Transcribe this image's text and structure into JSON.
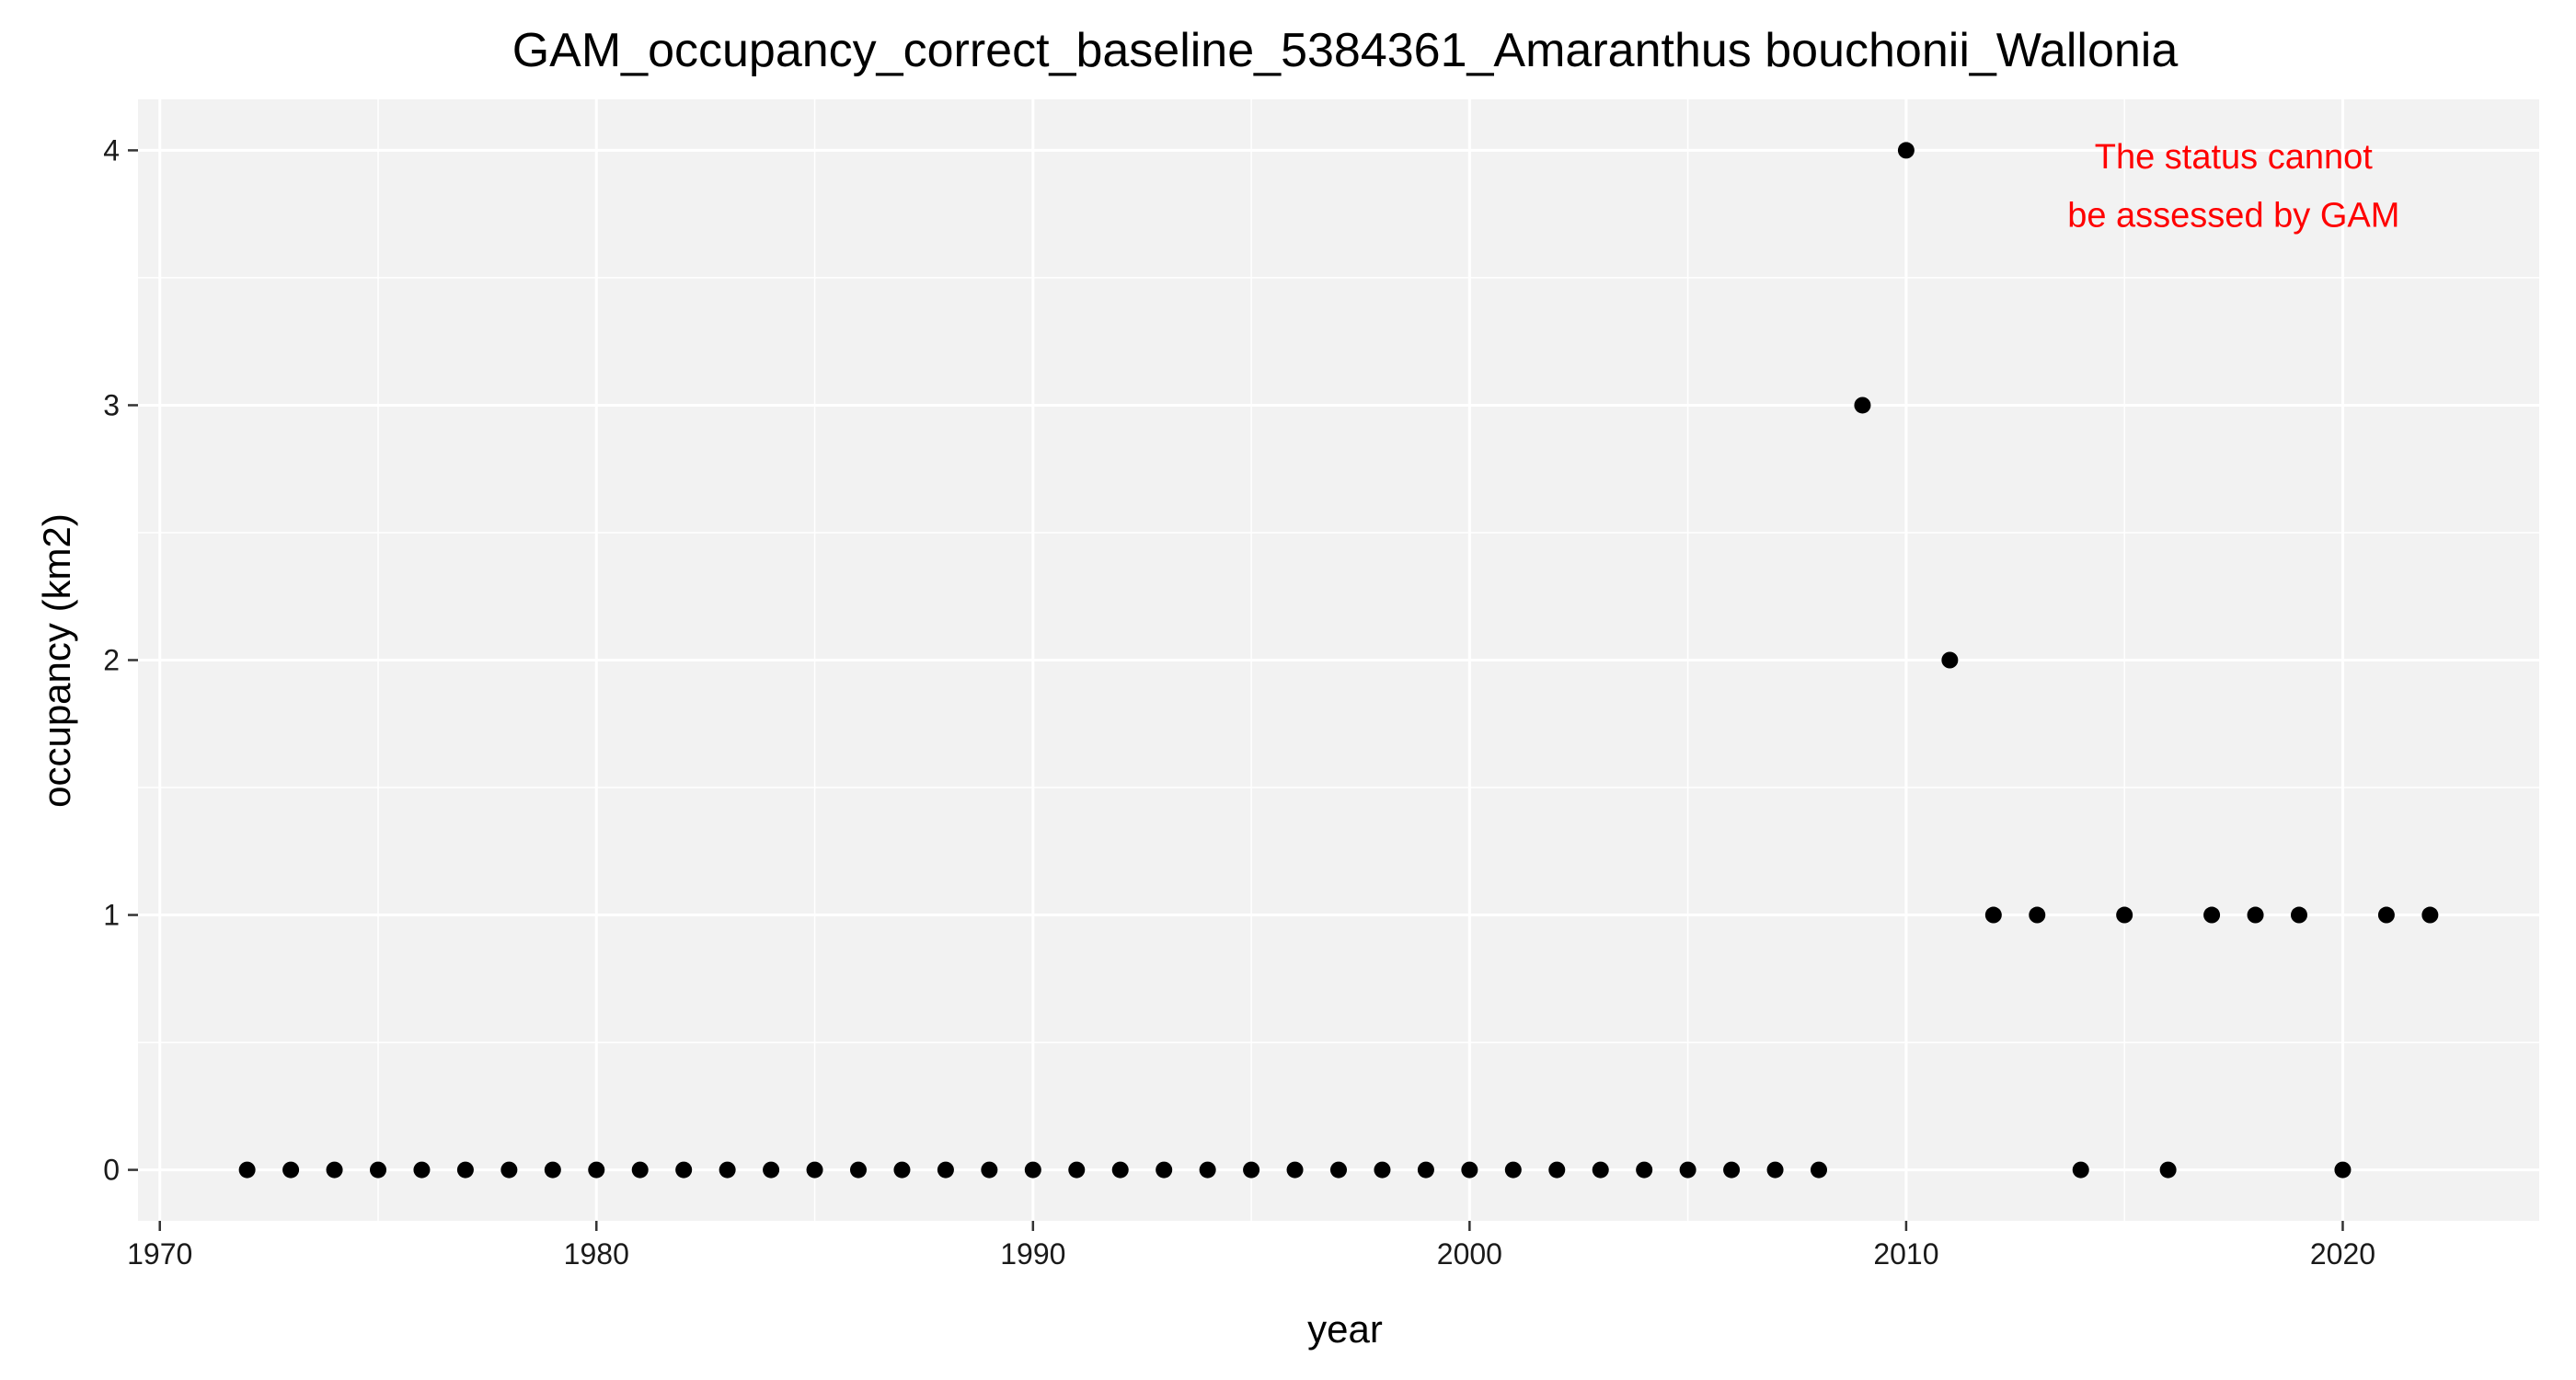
{
  "chart_data": {
    "type": "scatter",
    "title": "GAM_occupancy_correct_baseline_5384361_Amaranthus bouchonii_Wallonia",
    "xlabel": "year",
    "ylabel": "occupancy (km2)",
    "xlim": [
      1969.5,
      2024.5
    ],
    "ylim": [
      -0.2,
      4.2
    ],
    "x_ticks": [
      1970,
      1980,
      1990,
      2000,
      2010,
      2020
    ],
    "x_minor_ticks": [
      1975,
      1985,
      1995,
      2005,
      2015
    ],
    "y_ticks": [
      0,
      1,
      2,
      3,
      4
    ],
    "y_minor_ticks": [
      0.5,
      1.5,
      2.5,
      3.5
    ],
    "grid": true,
    "colors": {
      "panel": "#f2f2f2",
      "grid": "#ffffff",
      "points": "#000000",
      "annotation": "#ff0000"
    },
    "annotation": {
      "lines": [
        "The status cannot",
        "be assessed by GAM"
      ],
      "x": 2017.5,
      "y": [
        3.93,
        3.7
      ],
      "color": "#ff0000"
    },
    "series": [
      {
        "x": [
          1972,
          1973,
          1974,
          1975,
          1976,
          1977,
          1978,
          1979,
          1980,
          1981,
          1982,
          1983,
          1984,
          1985,
          1986,
          1987,
          1988,
          1989,
          1990,
          1991,
          1992,
          1993,
          1994,
          1995,
          1996,
          1997,
          1998,
          1999,
          2000,
          2001,
          2002,
          2003,
          2004,
          2005,
          2006,
          2007,
          2008,
          2009,
          2010,
          2011,
          2012,
          2013,
          2014,
          2015,
          2016,
          2017,
          2018,
          2019,
          2020,
          2021,
          2022
        ],
        "values": [
          0,
          0,
          0,
          0,
          0,
          0,
          0,
          0,
          0,
          0,
          0,
          0,
          0,
          0,
          0,
          0,
          0,
          0,
          0,
          0,
          0,
          0,
          0,
          0,
          0,
          0,
          0,
          0,
          0,
          0,
          0,
          0,
          0,
          0,
          0,
          0,
          0,
          3,
          4,
          2,
          1,
          1,
          0,
          1,
          0,
          1,
          1,
          1,
          0,
          1,
          1
        ]
      }
    ]
  }
}
